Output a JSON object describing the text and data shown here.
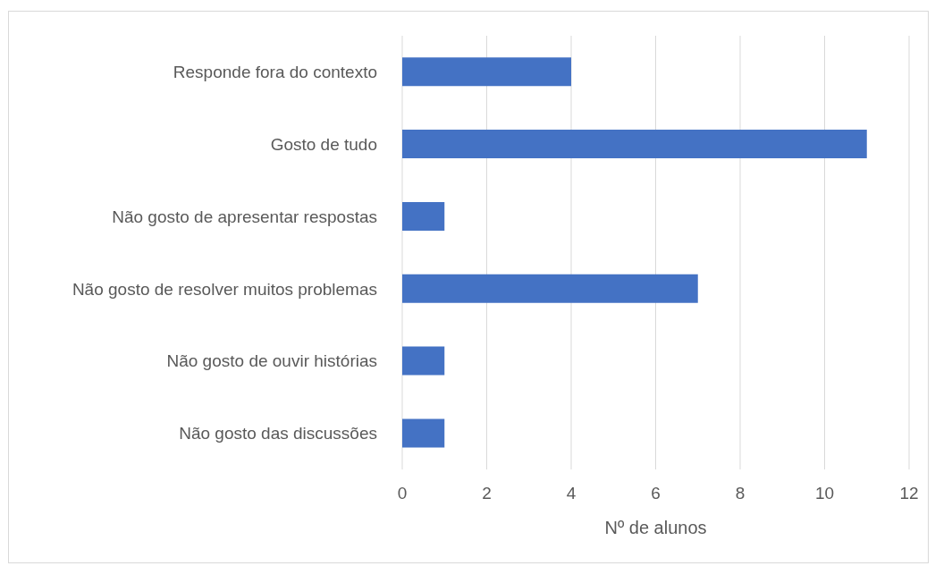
{
  "chart_data": {
    "type": "bar",
    "orientation": "horizontal",
    "xlabel": "Nº de alunos",
    "categories": [
      "Responde fora do contexto",
      "Gosto de tudo",
      "Não gosto de apresentar respostas",
      "Não gosto de resolver muitos problemas",
      "Não gosto de ouvir histórias",
      "Não gosto das discussões"
    ],
    "values": [
      4,
      11,
      1,
      7,
      1,
      1
    ],
    "color": "#4472c4",
    "xlim": [
      0,
      12
    ],
    "xticks": [
      0,
      2,
      4,
      6,
      8,
      10,
      12
    ],
    "grid": "x"
  }
}
